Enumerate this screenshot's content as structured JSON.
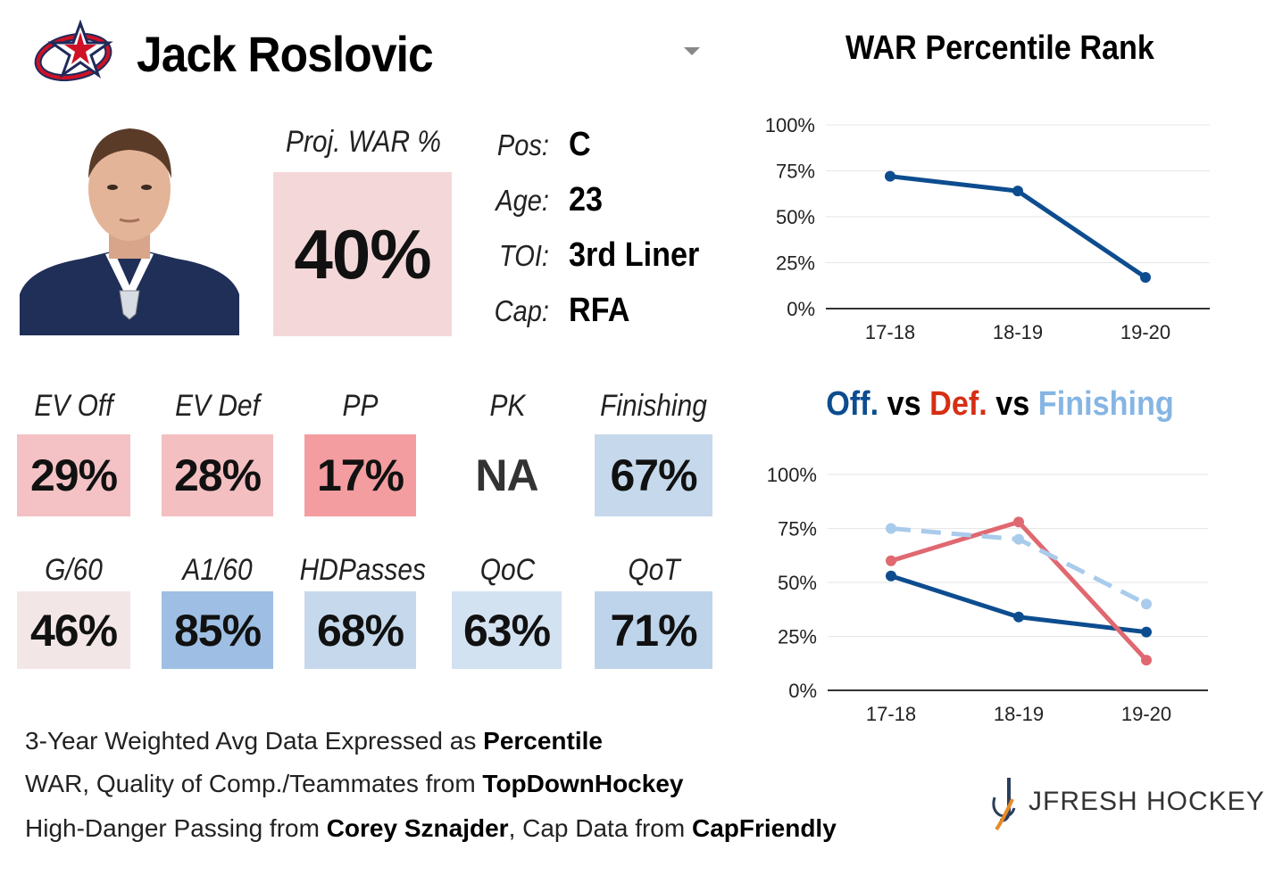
{
  "player": {
    "name": "Jack Roslovic",
    "proj_war_label": "Proj. WAR %",
    "proj_war_value": "40%",
    "bio": [
      {
        "label": "Pos:",
        "value": "C"
      },
      {
        "label": "Age:",
        "value": "23"
      },
      {
        "label": "TOI:",
        "value": "3rd Liner"
      },
      {
        "label": "Cap:",
        "value": "RFA"
      }
    ]
  },
  "stats_row1": [
    {
      "label": "EV Off",
      "value": "29%",
      "color": "#f4c2c4"
    },
    {
      "label": "EV Def",
      "value": "28%",
      "color": "#f4bfc1"
    },
    {
      "label": "PP",
      "value": "17%",
      "color": "#f39da0"
    },
    {
      "label": "PK",
      "value": "NA",
      "color": "#ffffff"
    },
    {
      "label": "Finishing",
      "value": "67%",
      "color": "#c6d9ec"
    }
  ],
  "stats_row2": [
    {
      "label": "G/60",
      "value": "46%",
      "color": "#f3e6e7"
    },
    {
      "label": "A1/60",
      "value": "85%",
      "color": "#9ebfe3"
    },
    {
      "label": "HDPasses",
      "value": "68%",
      "color": "#c6d9ec"
    },
    {
      "label": "QoC",
      "value": "63%",
      "color": "#d3e2f1"
    },
    {
      "label": "QoT",
      "value": "71%",
      "color": "#bed4eb"
    }
  ],
  "proj_war_color": "#f4d8d9",
  "footer": {
    "line1_prefix": "3-Year Weighted Avg Data Expressed as ",
    "line1_bold": "Percentile",
    "line2_prefix": "WAR, Quality of Comp./Teammates from ",
    "line2_bold": "TopDownHockey",
    "line3_prefix": "High-Danger Passing from ",
    "line3_bold1": "Corey Sznajder",
    "line3_mid": ", Cap Data from ",
    "line3_bold2": "CapFriendly"
  },
  "brand": {
    "name": "JFRESH HOCKEY",
    "team_logo_icon": "blue-jackets-logo-icon",
    "brand_icon": "jfresh-logo-icon"
  },
  "chart_data": [
    {
      "type": "line",
      "title": "WAR Percentile Rank",
      "x": [
        "17-18",
        "18-19",
        "19-20"
      ],
      "ylim": [
        0,
        100
      ],
      "yticks": [
        "0%",
        "25%",
        "50%",
        "75%",
        "100%"
      ],
      "grid": true,
      "series": [
        {
          "values": [
            72,
            64,
            17
          ],
          "color": "#0d4d8f",
          "dashed": false
        }
      ]
    },
    {
      "type": "line",
      "title_parts": [
        {
          "text": "Off.",
          "color": "#0d4d8f"
        },
        {
          "text": " vs ",
          "color": "#000000"
        },
        {
          "text": "Def.",
          "color": "#d62f14"
        },
        {
          "text": " vs ",
          "color": "#000000"
        },
        {
          "text": "Finishing",
          "color": "#86b5e4"
        }
      ],
      "x": [
        "17-18",
        "18-19",
        "19-20"
      ],
      "ylim": [
        0,
        100
      ],
      "yticks": [
        "0%",
        "25%",
        "50%",
        "75%",
        "100%"
      ],
      "grid": true,
      "series": [
        {
          "name": "Off.",
          "values": [
            53,
            34,
            27
          ],
          "color": "#0d4d8f",
          "dashed": false
        },
        {
          "name": "Def.",
          "values": [
            60,
            78,
            14
          ],
          "color": "#e06870",
          "dashed": false
        },
        {
          "name": "Finishing",
          "values": [
            75,
            70,
            40
          ],
          "color": "#a9cbec",
          "dashed": true
        }
      ]
    }
  ]
}
